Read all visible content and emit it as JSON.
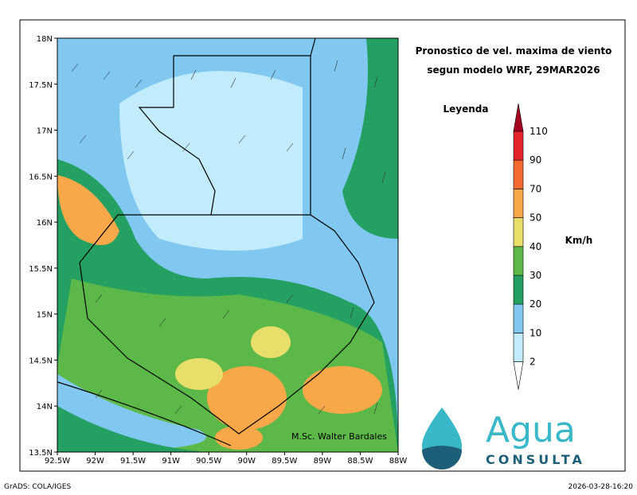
{
  "header": {
    "title_line1": "Pronostico de vel. maxima de viento",
    "title_line2": "segun modelo WRF, 29MAR2026"
  },
  "legend": {
    "title": "Leyenda",
    "unit": "Km/h",
    "levels": [
      2,
      10,
      20,
      30,
      40,
      50,
      70,
      90,
      110
    ],
    "colors": [
      "#ffffff",
      "#c2ecfc",
      "#80c8f0",
      "#23a062",
      "#5cb848",
      "#e8de6a",
      "#f8a848",
      "#f26a30",
      "#e3242b",
      "#a50021"
    ]
  },
  "map": {
    "lat_labels": [
      "18N",
      "17.5N",
      "17N",
      "16.5N",
      "16N",
      "15.5N",
      "15N",
      "14.5N",
      "14N",
      "13.5N"
    ],
    "lon_labels": [
      "92.5W",
      "92W",
      "91.5W",
      "91W",
      "90.5W",
      "90W",
      "89.5W",
      "89W",
      "88.5W",
      "88W"
    ],
    "credit": "M.Sc. Walter Bardales"
  },
  "logo": {
    "name": "Agua",
    "sub": "CONSULTA"
  },
  "footer": {
    "left": "GrADS: COLA/IGES",
    "right": "2026-03-28-16:20"
  }
}
